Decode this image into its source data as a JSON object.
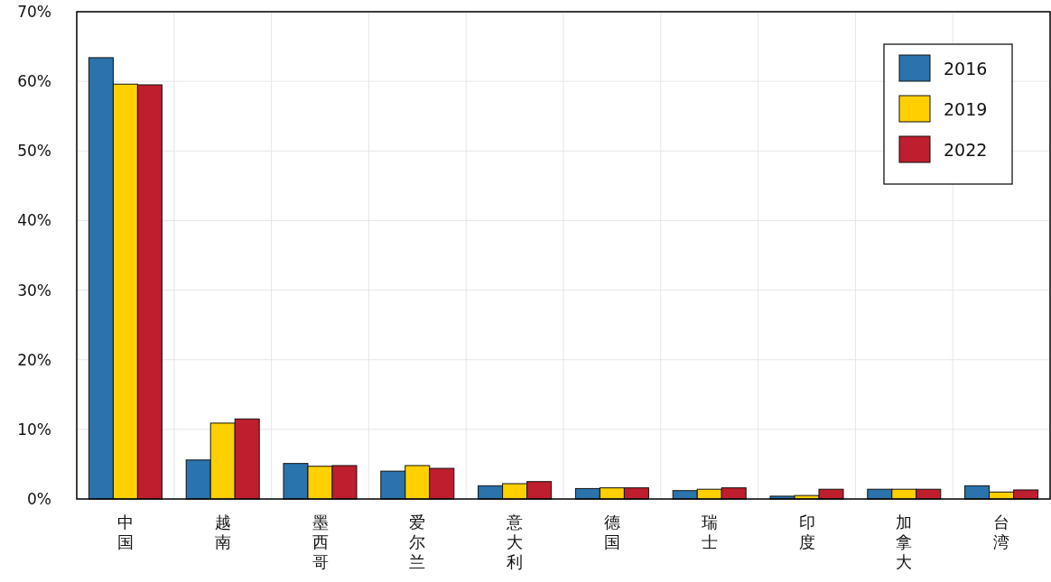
{
  "chart_data": {
    "type": "bar",
    "categories": [
      "中国",
      "越南",
      "墨西哥",
      "爱尔兰",
      "意大利",
      "德国",
      "瑞士",
      "印度",
      "加拿大",
      "台湾"
    ],
    "series": [
      {
        "name": "2016",
        "color": "#2a73ad",
        "values": [
          63.4,
          5.6,
          5.1,
          4.0,
          1.9,
          1.5,
          1.2,
          0.4,
          1.4,
          1.9
        ]
      },
      {
        "name": "2019",
        "color": "#ffd000",
        "values": [
          59.6,
          10.9,
          4.7,
          4.8,
          2.2,
          1.6,
          1.4,
          0.5,
          1.4,
          1.0
        ]
      },
      {
        "name": "2022",
        "color": "#be1e2d",
        "values": [
          59.5,
          11.5,
          4.8,
          4.4,
          2.5,
          1.6,
          1.6,
          1.4,
          1.4,
          1.3
        ]
      }
    ],
    "ylim": [
      0,
      70
    ],
    "yticks": [
      {
        "value": 0,
        "label": "0%"
      },
      {
        "value": 10,
        "label": "10%"
      },
      {
        "value": 20,
        "label": "20%"
      },
      {
        "value": 30,
        "label": "30%"
      },
      {
        "value": 40,
        "label": "40%"
      },
      {
        "value": 50,
        "label": "50%"
      },
      {
        "value": 60,
        "label": "60%"
      },
      {
        "value": 70,
        "label": "70%"
      }
    ],
    "grid": true,
    "legend": "top right"
  }
}
